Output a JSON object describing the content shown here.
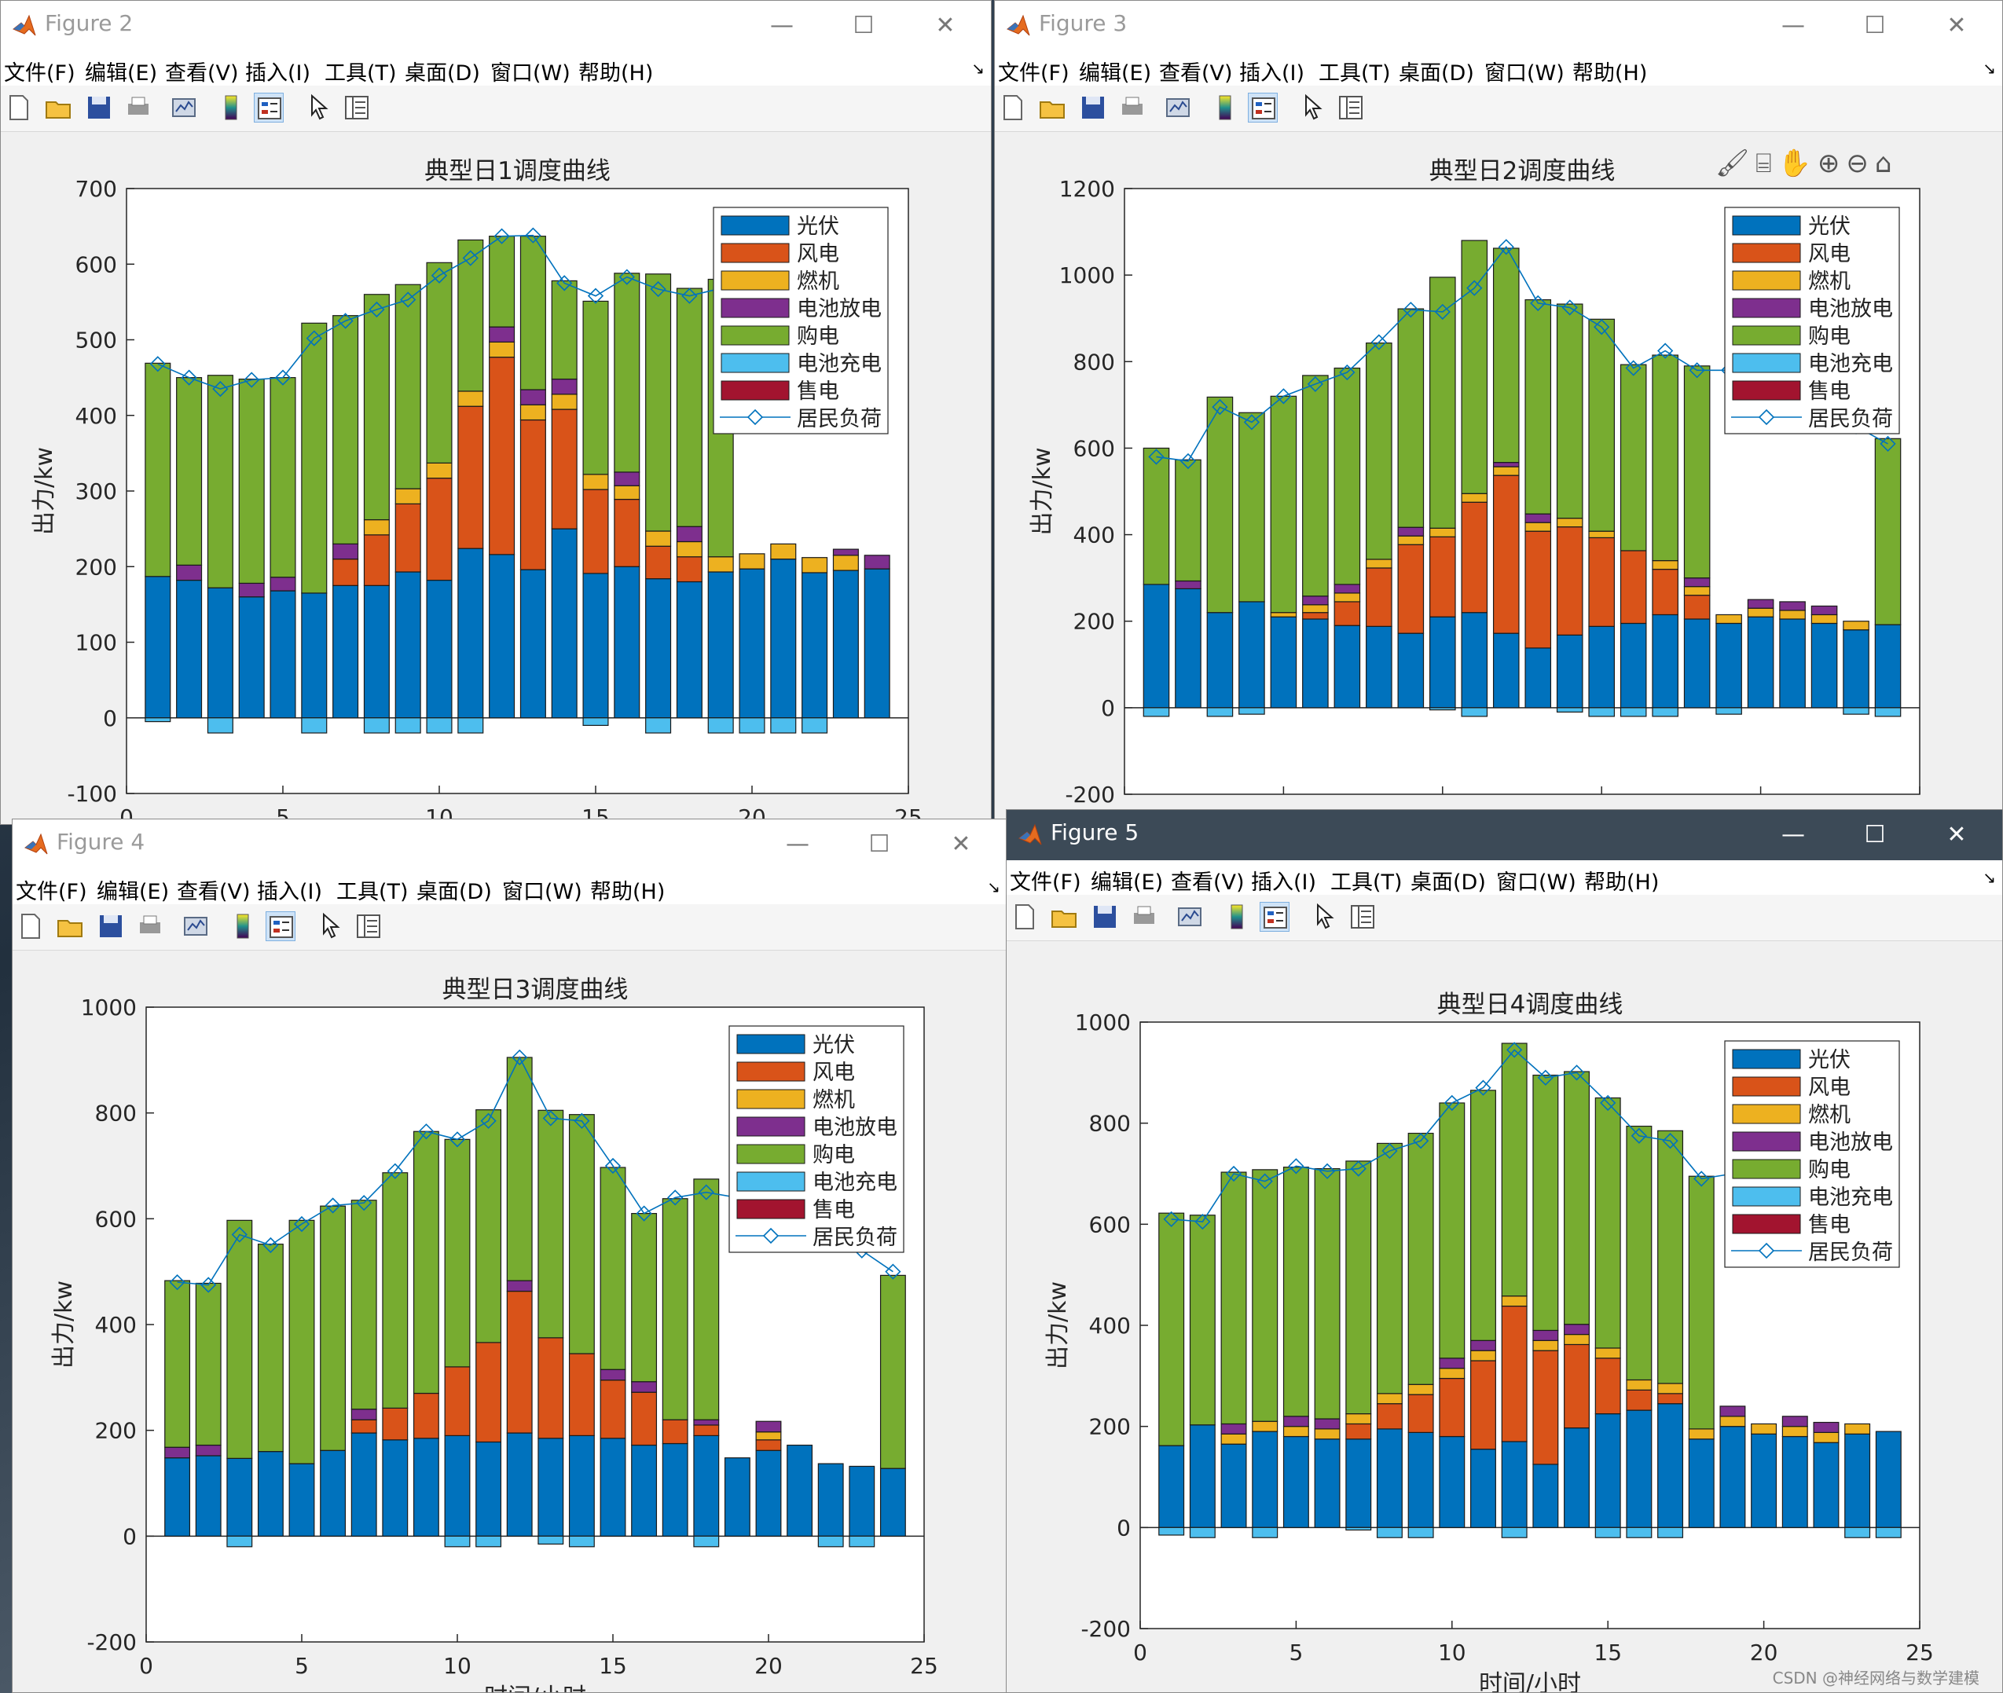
{
  "menu": [
    "文件(F)",
    "编辑(E)",
    "查看(V)",
    "插入(I)",
    "工具(T)",
    "桌面(D)",
    "窗口(W)",
    "帮助(H)"
  ],
  "legend_labels": [
    "光伏",
    "风电",
    "燃机",
    "电池放电",
    "购电",
    "电池充电",
    "售电",
    "居民负荷"
  ],
  "colors": {
    "pv": "#0072BD",
    "wind": "#D95319",
    "gas": "#EDB120",
    "dis": "#7E2F8E",
    "buy": "#77AC30",
    "chg": "#4DBEEE",
    "sell": "#A2142F",
    "load": "#0072BD"
  },
  "watermark": "CSDN @神经网络与数学建模",
  "windows": [
    {
      "title": "Figure 2",
      "chart_data": {
        "type": "bar",
        "title": "典型日1调度曲线",
        "xlabel": "",
        "ylabel": "出力/kw",
        "xlim": [
          0,
          25
        ],
        "ylim": [
          -100,
          700
        ],
        "yticks": [
          -100,
          0,
          100,
          200,
          300,
          400,
          500,
          600,
          700
        ],
        "xticks": [
          0,
          5,
          10,
          15,
          20,
          25
        ],
        "hours": [
          1,
          2,
          3,
          4,
          5,
          6,
          7,
          8,
          9,
          10,
          11,
          12,
          13,
          14,
          15,
          16,
          17,
          18,
          19,
          20,
          21,
          22,
          23,
          24
        ],
        "pv": [
          187,
          182,
          172,
          160,
          168,
          165,
          175,
          175,
          193,
          182,
          224,
          216,
          196,
          250,
          191,
          200,
          184,
          180,
          193,
          197,
          210,
          192,
          195,
          197
        ],
        "wind": [
          0,
          0,
          0,
          0,
          0,
          0,
          35,
          67,
          90,
          135,
          188,
          261,
          198,
          158,
          111,
          89,
          43,
          33,
          0,
          0,
          0,
          0,
          0,
          0
        ],
        "gas": [
          0,
          0,
          0,
          0,
          0,
          0,
          0,
          20,
          20,
          20,
          20,
          20,
          20,
          20,
          20,
          18,
          20,
          20,
          20,
          20,
          20,
          20,
          20,
          0
        ],
        "dis": [
          0,
          20,
          0,
          18,
          18,
          0,
          20,
          0,
          0,
          0,
          0,
          20,
          20,
          20,
          0,
          18,
          0,
          20,
          0,
          0,
          0,
          0,
          8,
          18
        ],
        "buy": [
          282,
          248,
          281,
          270,
          264,
          357,
          302,
          298,
          270,
          265,
          200,
          120,
          203,
          130,
          229,
          263,
          340,
          315,
          367,
          0,
          0,
          0,
          0,
          0
        ],
        "chg": [
          -5,
          0,
          -20,
          0,
          0,
          -20,
          0,
          -20,
          -20,
          -20,
          -20,
          0,
          0,
          0,
          -10,
          0,
          -20,
          0,
          -20,
          -20,
          -20,
          -20,
          0,
          0
        ],
        "sell": [
          0,
          0,
          0,
          0,
          0,
          0,
          0,
          0,
          0,
          0,
          0,
          0,
          0,
          0,
          0,
          0,
          0,
          0,
          0,
          0,
          0,
          0,
          0,
          0
        ],
        "load": [
          468,
          450,
          435,
          447,
          450,
          502,
          525,
          540,
          553,
          585,
          608,
          637,
          638,
          575,
          558,
          583,
          567,
          558,
          568,
          560,
          560,
          550,
          540,
          470
        ]
      }
    },
    {
      "title": "Figure 3",
      "chart_data": {
        "type": "bar",
        "title": "典型日2调度曲线",
        "xlabel": "",
        "ylabel": "出力/kw",
        "xlim": [
          0,
          25
        ],
        "ylim": [
          -200,
          1200
        ],
        "yticks": [
          -200,
          0,
          200,
          400,
          600,
          800,
          1000,
          1200
        ],
        "xticks": [
          0,
          5,
          10,
          15,
          20,
          25
        ],
        "hours": [
          1,
          2,
          3,
          4,
          5,
          6,
          7,
          8,
          9,
          10,
          11,
          12,
          13,
          14,
          15,
          16,
          17,
          18,
          19,
          20,
          21,
          22,
          23,
          24
        ],
        "pv": [
          285,
          275,
          220,
          245,
          210,
          205,
          190,
          188,
          172,
          210,
          220,
          172,
          138,
          168,
          188,
          195,
          215,
          205,
          195,
          210,
          205,
          195,
          180,
          192
        ],
        "wind": [
          0,
          0,
          0,
          0,
          0,
          15,
          55,
          135,
          205,
          185,
          255,
          365,
          270,
          250,
          205,
          168,
          105,
          55,
          0,
          0,
          0,
          0,
          0,
          0
        ],
        "gas": [
          0,
          0,
          0,
          0,
          10,
          18,
          20,
          20,
          20,
          20,
          20,
          20,
          20,
          20,
          15,
          0,
          20,
          20,
          20,
          20,
          20,
          20,
          20,
          0
        ],
        "dis": [
          0,
          18,
          0,
          0,
          0,
          20,
          20,
          0,
          20,
          0,
          0,
          10,
          20,
          0,
          0,
          0,
          0,
          20,
          0,
          20,
          20,
          20,
          0,
          0
        ],
        "buy": [
          315,
          280,
          498,
          437,
          500,
          510,
          500,
          500,
          505,
          580,
          585,
          495,
          495,
          495,
          490,
          430,
          475,
          490,
          0,
          0,
          0,
          0,
          0,
          430
        ],
        "chg": [
          -20,
          0,
          -20,
          -15,
          0,
          0,
          0,
          0,
          0,
          -5,
          -20,
          0,
          0,
          -10,
          -20,
          -20,
          -20,
          0,
          -15,
          0,
          0,
          0,
          -15,
          -20
        ],
        "sell": [
          0,
          0,
          0,
          0,
          0,
          0,
          0,
          0,
          0,
          0,
          0,
          0,
          0,
          0,
          0,
          0,
          0,
          0,
          0,
          0,
          0,
          0,
          0,
          0
        ],
        "load": [
          580,
          570,
          695,
          660,
          720,
          748,
          775,
          845,
          920,
          915,
          970,
          1065,
          935,
          925,
          880,
          785,
          825,
          780,
          780,
          775,
          745,
          705,
          650,
          610
        ]
      }
    },
    {
      "title": "Figure 4",
      "chart_data": {
        "type": "bar",
        "title": "典型日3调度曲线",
        "xlabel": "时间/小时",
        "ylabel": "出力/kw",
        "xlim": [
          0,
          25
        ],
        "ylim": [
          -200,
          1000
        ],
        "yticks": [
          -200,
          0,
          200,
          400,
          600,
          800,
          1000
        ],
        "xticks": [
          0,
          5,
          10,
          15,
          20,
          25
        ],
        "hours": [
          1,
          2,
          3,
          4,
          5,
          6,
          7,
          8,
          9,
          10,
          11,
          12,
          13,
          14,
          15,
          16,
          17,
          18,
          19,
          20,
          21,
          22,
          23,
          24
        ],
        "pv": [
          148,
          152,
          147,
          160,
          137,
          162,
          195,
          182,
          185,
          190,
          178,
          195,
          185,
          190,
          185,
          172,
          175,
          190,
          148,
          162,
          172,
          137,
          132,
          128
        ],
        "wind": [
          0,
          0,
          0,
          0,
          0,
          0,
          25,
          60,
          85,
          130,
          188,
          268,
          190,
          155,
          110,
          100,
          45,
          20,
          0,
          20,
          0,
          0,
          0,
          0
        ],
        "gas": [
          0,
          0,
          0,
          0,
          0,
          0,
          0,
          0,
          0,
          0,
          0,
          0,
          0,
          0,
          0,
          0,
          0,
          0,
          0,
          15,
          0,
          0,
          0,
          0
        ],
        "dis": [
          20,
          20,
          0,
          0,
          0,
          0,
          20,
          0,
          0,
          0,
          0,
          20,
          0,
          0,
          20,
          20,
          0,
          10,
          0,
          20,
          0,
          0,
          0,
          0
        ],
        "buy": [
          315,
          306,
          450,
          392,
          460,
          462,
          395,
          445,
          495,
          430,
          440,
          422,
          430,
          452,
          382,
          318,
          418,
          455,
          0,
          0,
          0,
          0,
          0,
          365
        ],
        "chg": [
          0,
          0,
          -20,
          0,
          0,
          0,
          0,
          0,
          0,
          -20,
          -20,
          0,
          -15,
          -20,
          0,
          0,
          0,
          -20,
          0,
          0,
          0,
          -20,
          -20,
          0
        ],
        "sell": [
          0,
          0,
          0,
          0,
          0,
          0,
          0,
          0,
          0,
          0,
          0,
          0,
          0,
          0,
          0,
          0,
          0,
          0,
          0,
          0,
          0,
          0,
          0,
          0
        ],
        "load": [
          480,
          475,
          570,
          550,
          590,
          625,
          630,
          690,
          765,
          750,
          785,
          905,
          790,
          785,
          700,
          610,
          640,
          650,
          640,
          620,
          600,
          560,
          540,
          500
        ]
      }
    },
    {
      "title": "Figure 5",
      "chart_data": {
        "type": "bar",
        "title": "典型日4调度曲线",
        "xlabel": "时间/小时",
        "ylabel": "出力/kw",
        "xlim": [
          0,
          25
        ],
        "ylim": [
          -200,
          1000
        ],
        "yticks": [
          -200,
          0,
          200,
          400,
          600,
          800,
          1000
        ],
        "xticks": [
          0,
          5,
          10,
          15,
          20,
          25
        ],
        "hours": [
          1,
          2,
          3,
          4,
          5,
          6,
          7,
          8,
          9,
          10,
          11,
          12,
          13,
          14,
          15,
          16,
          17,
          18,
          19,
          20,
          21,
          22,
          23,
          24
        ],
        "pv": [
          162,
          203,
          165,
          190,
          180,
          175,
          175,
          195,
          188,
          180,
          155,
          170,
          125,
          197,
          225,
          232,
          245,
          175,
          200,
          185,
          180,
          168,
          185,
          190
        ],
        "wind": [
          0,
          0,
          0,
          0,
          0,
          0,
          30,
          50,
          75,
          115,
          175,
          268,
          225,
          165,
          110,
          40,
          20,
          0,
          0,
          0,
          0,
          0,
          0,
          0
        ],
        "gas": [
          0,
          0,
          20,
          20,
          20,
          20,
          20,
          20,
          20,
          20,
          20,
          20,
          20,
          20,
          20,
          20,
          20,
          20,
          20,
          20,
          20,
          20,
          20,
          0
        ],
        "dis": [
          0,
          0,
          20,
          0,
          20,
          20,
          0,
          0,
          0,
          20,
          20,
          0,
          20,
          20,
          0,
          0,
          0,
          0,
          20,
          0,
          20,
          20,
          0,
          0
        ],
        "buy": [
          460,
          415,
          498,
          498,
          493,
          495,
          500,
          495,
          497,
          505,
          495,
          500,
          505,
          500,
          495,
          502,
          500,
          500,
          0,
          0,
          0,
          0,
          0,
          0
        ],
        "chg": [
          -15,
          -20,
          0,
          -20,
          0,
          0,
          -5,
          -20,
          -20,
          0,
          0,
          -20,
          0,
          0,
          -20,
          -20,
          -20,
          0,
          0,
          0,
          0,
          0,
          -20,
          -20
        ],
        "sell": [
          0,
          0,
          0,
          0,
          0,
          0,
          0,
          0,
          0,
          0,
          0,
          0,
          0,
          0,
          0,
          0,
          0,
          0,
          0,
          0,
          0,
          0,
          0,
          0
        ],
        "load": [
          610,
          605,
          700,
          685,
          715,
          705,
          710,
          745,
          765,
          840,
          870,
          945,
          890,
          900,
          840,
          775,
          765,
          690,
          700,
          690,
          680,
          670,
          650,
          640
        ]
      }
    }
  ]
}
